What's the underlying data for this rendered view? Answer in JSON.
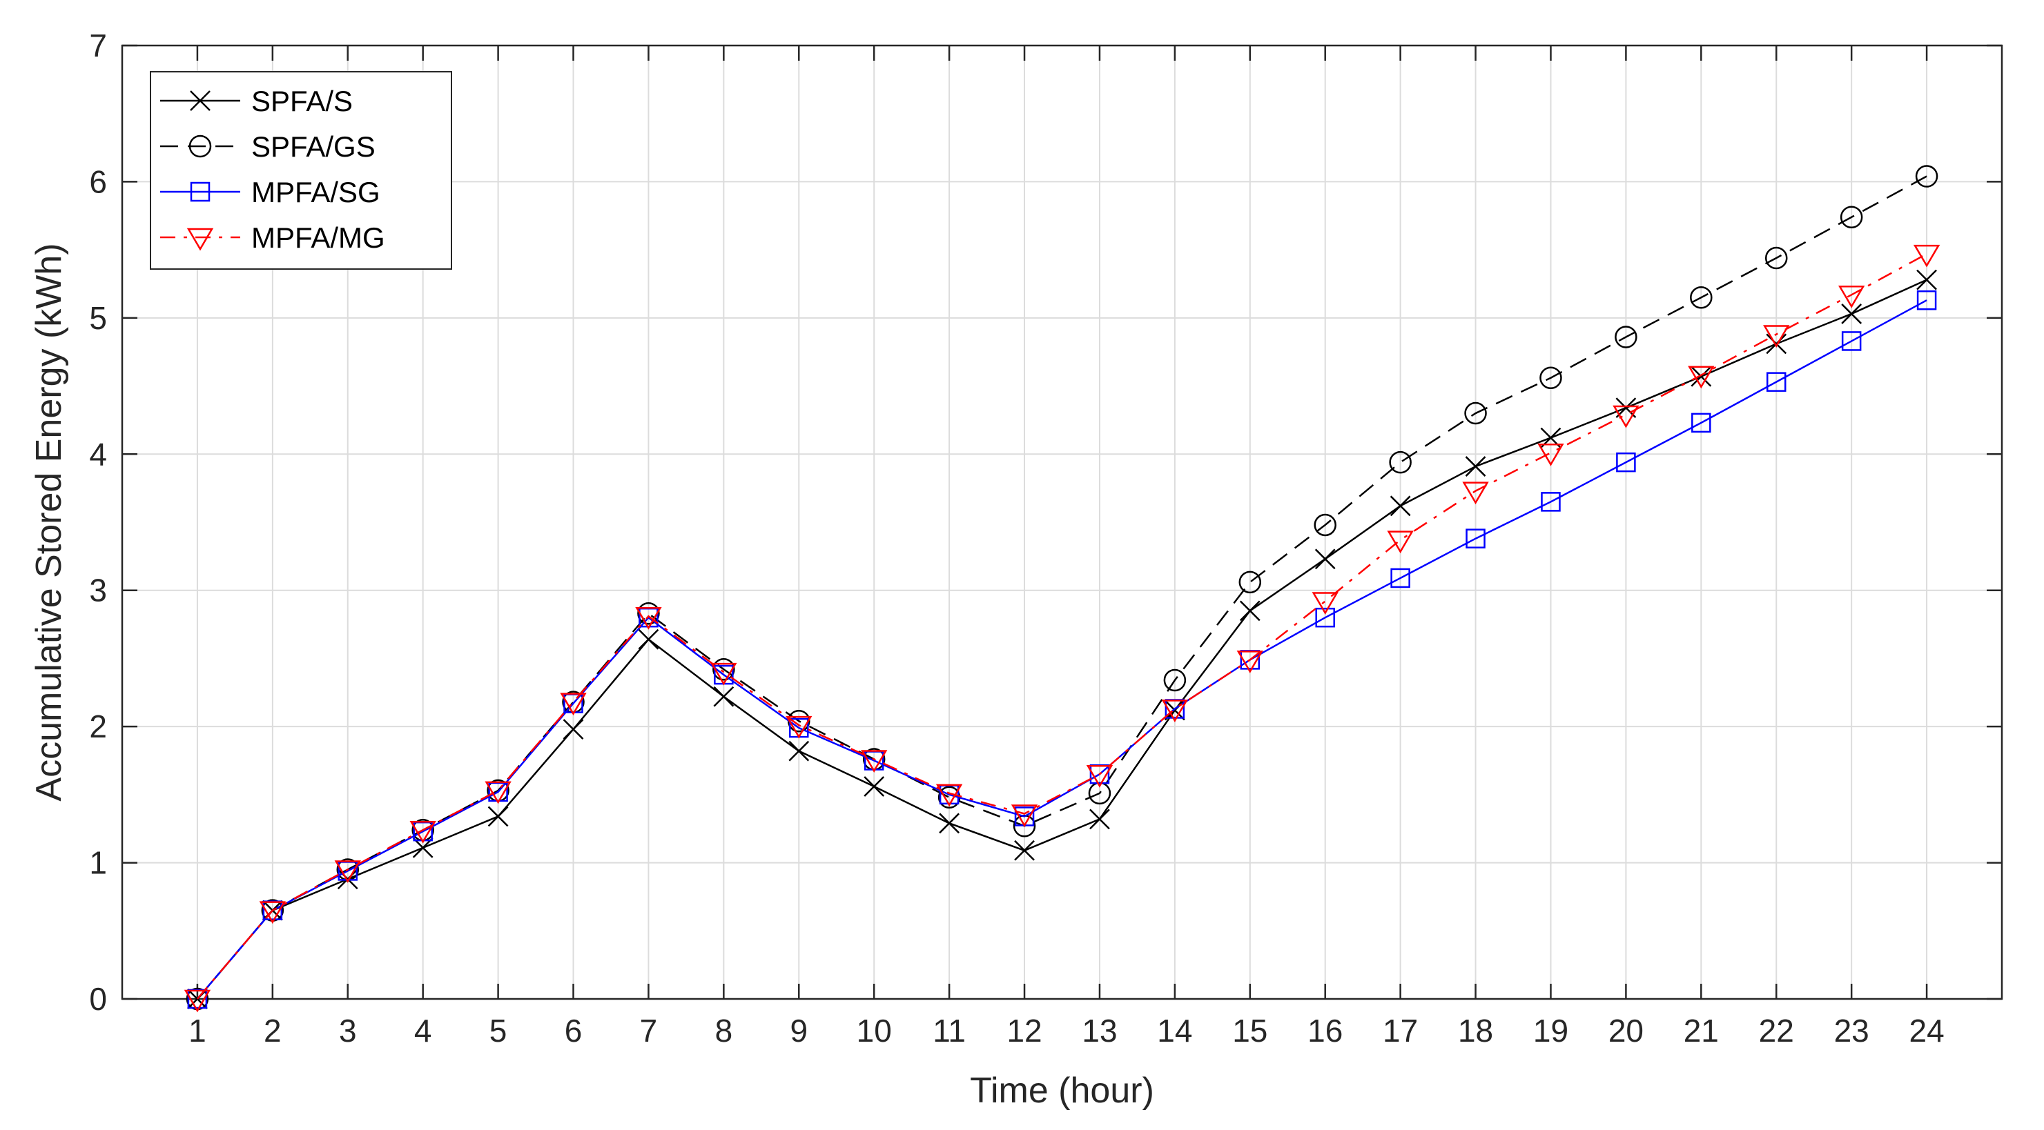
{
  "chart_data": {
    "type": "line",
    "title": "",
    "xlabel": "Time (hour)",
    "ylabel": "Accumulative Stored Energy (kWh)",
    "xlim": [
      0,
      25
    ],
    "ylim": [
      0,
      7
    ],
    "x": [
      1,
      2,
      3,
      4,
      5,
      6,
      7,
      8,
      9,
      10,
      11,
      12,
      13,
      14,
      15,
      16,
      17,
      18,
      19,
      20,
      21,
      22,
      23,
      24
    ],
    "xticks": [
      "1",
      "2",
      "3",
      "4",
      "5",
      "6",
      "7",
      "8",
      "9",
      "10",
      "11",
      "12",
      "13",
      "14",
      "15",
      "16",
      "17",
      "18",
      "19",
      "20",
      "21",
      "22",
      "23",
      "24"
    ],
    "yticks": [
      "0",
      "1",
      "2",
      "3",
      "4",
      "5",
      "6",
      "7"
    ],
    "grid": true,
    "legend_position": "top-left",
    "series": [
      {
        "name": "SPFA/S",
        "color": "#000000",
        "line_style": "solid",
        "marker": "x",
        "values": [
          0,
          0.65,
          0.88,
          1.11,
          1.34,
          1.98,
          2.64,
          2.22,
          1.82,
          1.56,
          1.29,
          1.09,
          1.32,
          2.12,
          2.85,
          3.23,
          3.62,
          3.91,
          4.12,
          4.34,
          4.57,
          4.81,
          5.03,
          5.28
        ]
      },
      {
        "name": "SPFA/GS",
        "color": "#000000",
        "line_style": "dashed",
        "marker": "circle",
        "values": [
          0,
          0.65,
          0.95,
          1.24,
          1.53,
          2.18,
          2.83,
          2.42,
          2.04,
          1.76,
          1.48,
          1.27,
          1.51,
          2.34,
          3.06,
          3.48,
          3.94,
          4.3,
          4.56,
          4.86,
          5.15,
          5.44,
          5.74,
          6.04
        ]
      },
      {
        "name": "MPFA/SG",
        "color": "#0000ff",
        "line_style": "solid",
        "marker": "square",
        "values": [
          0,
          0.65,
          0.94,
          1.23,
          1.52,
          2.17,
          2.8,
          2.38,
          1.99,
          1.75,
          1.5,
          1.34,
          1.65,
          2.13,
          2.49,
          2.8,
          3.09,
          3.38,
          3.65,
          3.94,
          4.23,
          4.53,
          4.83,
          5.13
        ]
      },
      {
        "name": "MPFA/MG",
        "color": "#ff0000",
        "line_style": "dashdot",
        "marker": "triangle-down",
        "values": [
          0,
          0.65,
          0.95,
          1.24,
          1.53,
          2.18,
          2.81,
          2.4,
          2.01,
          1.76,
          1.51,
          1.36,
          1.65,
          2.13,
          2.49,
          2.92,
          3.37,
          3.73,
          4.01,
          4.29,
          4.58,
          4.88,
          5.17,
          5.47
        ]
      }
    ]
  }
}
